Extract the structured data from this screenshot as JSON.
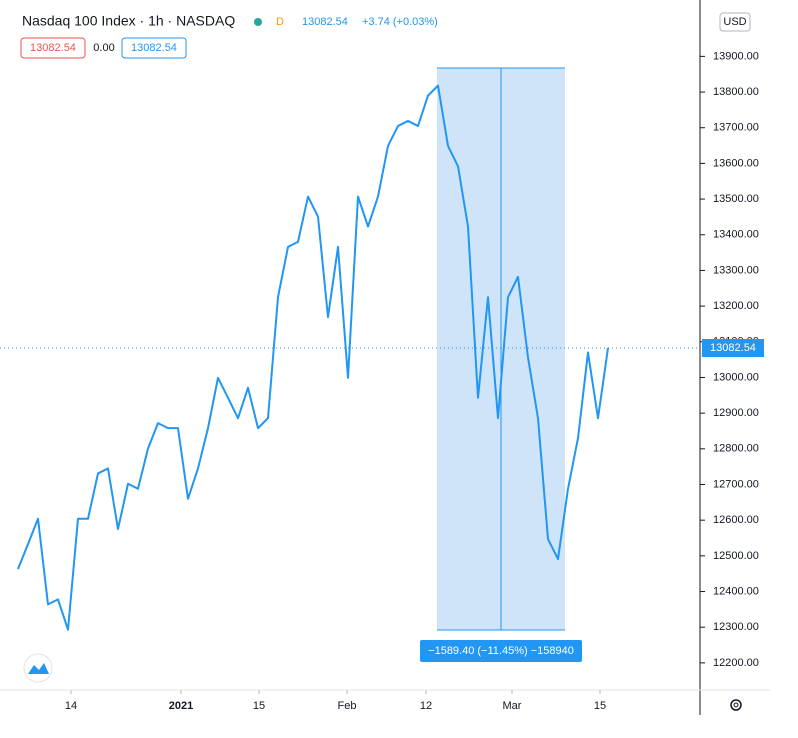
{
  "chart_data": {
    "type": "line",
    "title": "Nasdaq 100 Index · 1h · NASDAQ",
    "interval_badge": "D",
    "last_price": "13082.54",
    "change": "+3.74 (+0.03%)",
    "badges": [
      "13082.54",
      "0.00",
      "13082.54"
    ],
    "currency": "USD",
    "measure_label": "−1589.40 (−11.45%) −158940",
    "series": [
      {
        "name": "Nasdaq 100 Index",
        "color": "#2196f3",
        "values": [
          12463,
          12533,
          12604,
          12364,
          12378,
          12293,
          12604,
          12604,
          12731,
          12745,
          12575,
          12702,
          12688,
          12801,
          12872,
          12858,
          12858,
          12660,
          12745,
          12858,
          12999,
          12943,
          12886,
          12971,
          12858,
          12886,
          13225,
          13366,
          13380,
          13507,
          13451,
          13169,
          13366,
          12999,
          13507,
          13423,
          13507,
          13649,
          13705,
          13719,
          13705,
          13790,
          13818,
          13649,
          13592,
          13423,
          12943,
          13225,
          12886,
          13225,
          13282,
          13056,
          12886,
          12547,
          12491,
          12688,
          12830,
          13070,
          12886,
          13082.54
        ]
      }
    ],
    "value_labels": [
      "13082.54"
    ],
    "xlim": [
      -1.8,
      68.2
    ],
    "xticks": [
      {
        "value": 5.3,
        "label": "14"
      },
      {
        "value": 16.3,
        "label": "2021"
      },
      {
        "value": 24.1,
        "label": "15"
      },
      {
        "value": 32.9,
        "label": "Feb"
      },
      {
        "value": 40.8,
        "label": "12"
      },
      {
        "value": 49.4,
        "label": "Mar"
      },
      {
        "value": 58.2,
        "label": "15"
      }
    ],
    "ylim": [
      12124,
      14058
    ],
    "yticks": [
      {
        "value": 12200,
        "label": "12200.00"
      },
      {
        "value": 12300,
        "label": "12300.00"
      },
      {
        "value": 12400,
        "label": "12400.00"
      },
      {
        "value": 12500,
        "label": "12500.00"
      },
      {
        "value": 12600,
        "label": "12600.00"
      },
      {
        "value": 12700,
        "label": "12700.00"
      },
      {
        "value": 12800,
        "label": "12800.00"
      },
      {
        "value": 12900,
        "label": "12900.00"
      },
      {
        "value": 13000,
        "label": "13000.00"
      },
      {
        "value": 13100,
        "label": "13100.00"
      },
      {
        "value": 13200,
        "label": "13200.00"
      },
      {
        "value": 13300,
        "label": "13300.00"
      },
      {
        "value": 13400,
        "label": "13400.00"
      },
      {
        "value": 13500,
        "label": "13500.00"
      },
      {
        "value": 13600,
        "label": "13600.00"
      },
      {
        "value": 13700,
        "label": "13700.00"
      },
      {
        "value": 13800,
        "label": "13800.00"
      },
      {
        "value": 13900,
        "label": "13900.00"
      }
    ]
  }
}
